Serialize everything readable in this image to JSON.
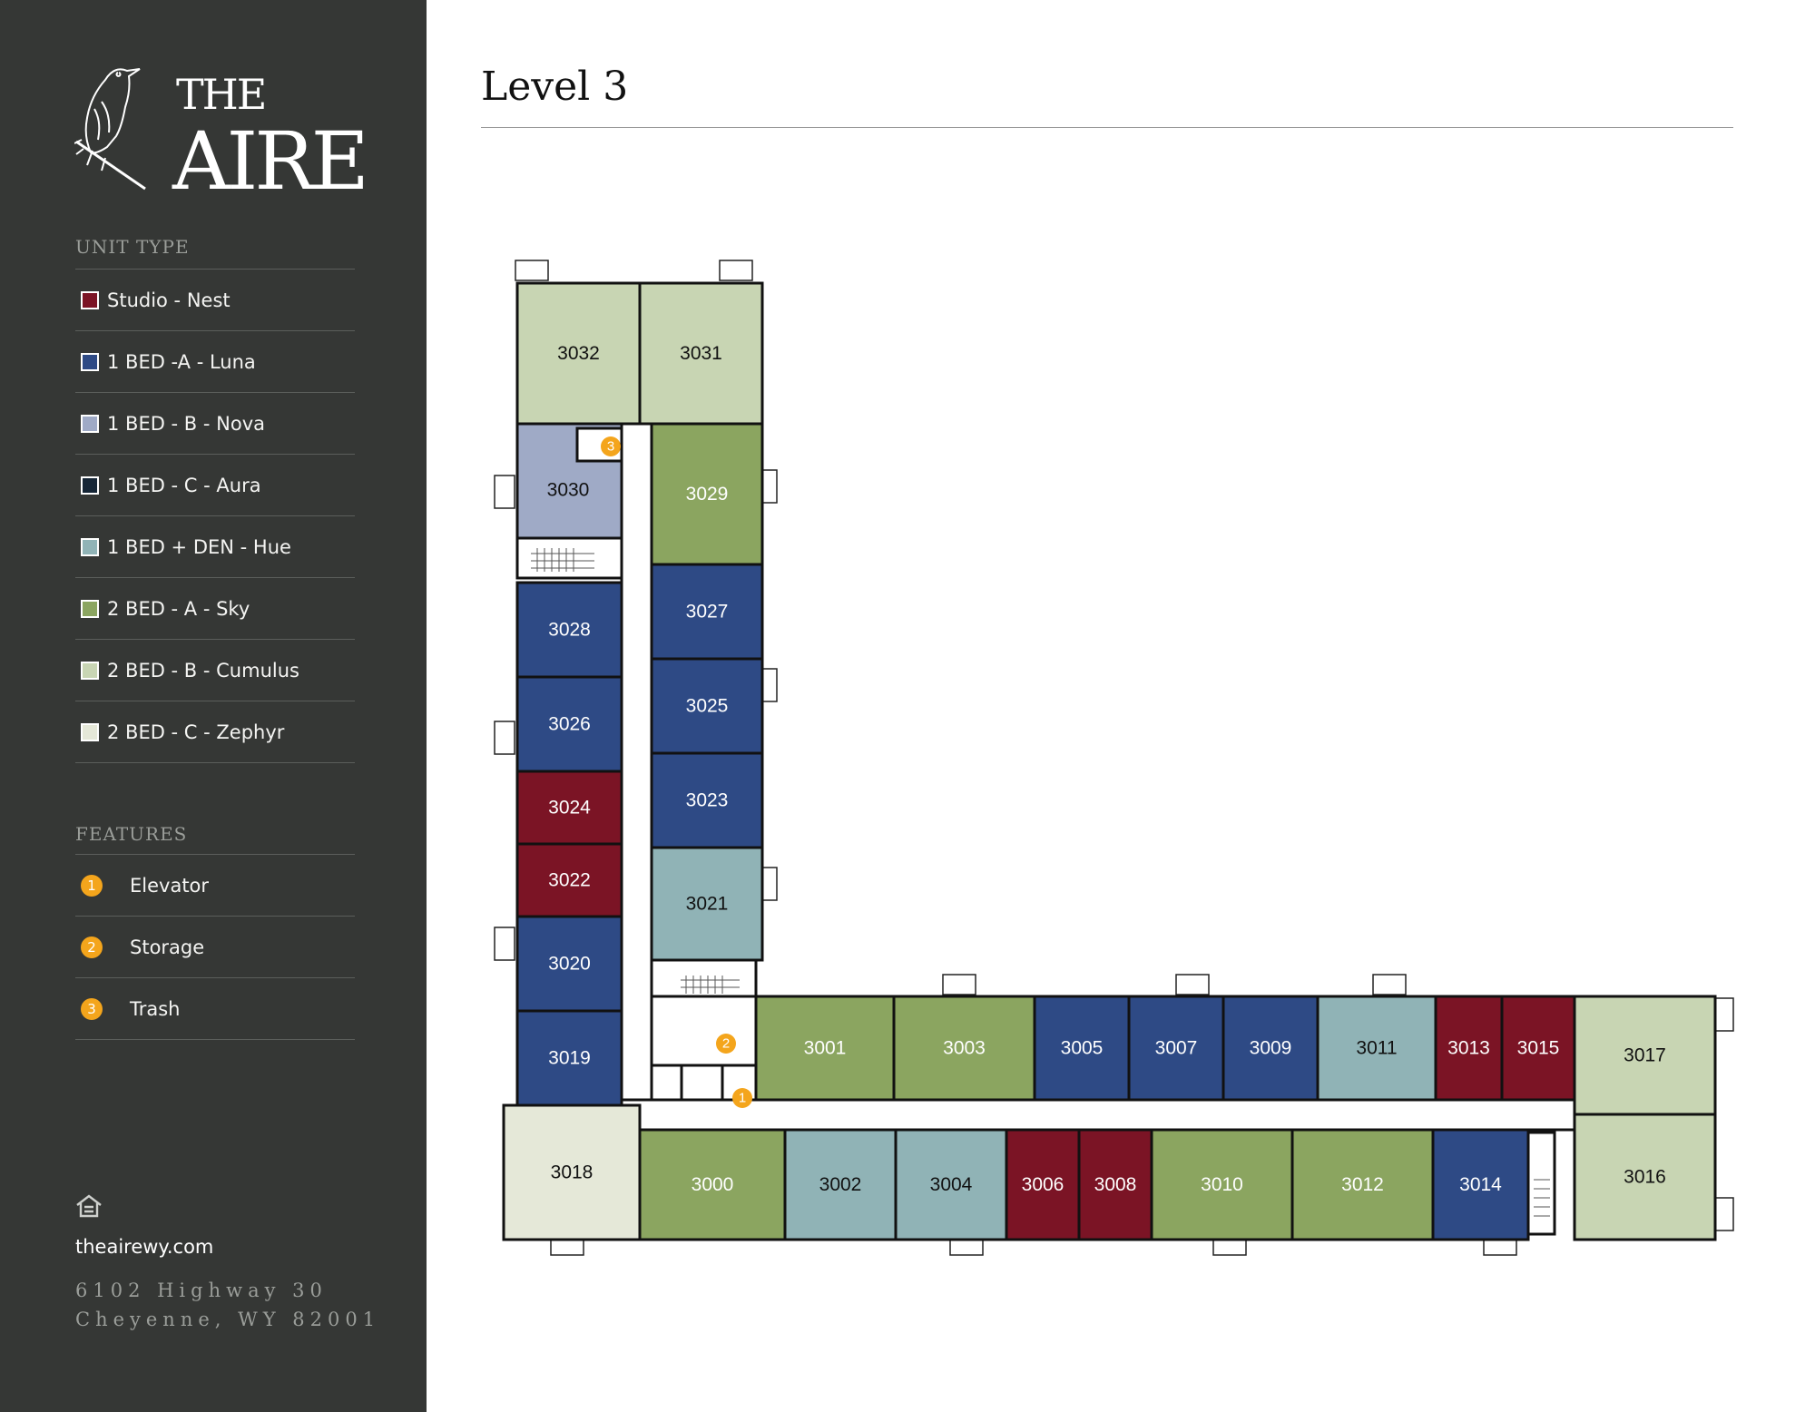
{
  "brand": {
    "line1": "THE",
    "line2": "AIRE"
  },
  "page_title": "Level 3",
  "legend": {
    "title": "UNIT TYPE",
    "items": [
      {
        "label": "Studio - Nest",
        "color": "#7b1425"
      },
      {
        "label": "1 BED -A - Luna",
        "color": "#2e4a85"
      },
      {
        "label": "1 BED - B - Nova",
        "color": "#9faac6"
      },
      {
        "label": "1 BED - C - Aura",
        "color": "#152535"
      },
      {
        "label": "1 BED + DEN - Hue",
        "color": "#90b3b6"
      },
      {
        "label": "2 BED - A - Sky",
        "color": "#8ba560"
      },
      {
        "label": "2 BED - B - Cumulus",
        "color": "#c8d5b3"
      },
      {
        "label": "2 BED - C - Zephyr",
        "color": "#e5e8d8"
      }
    ]
  },
  "features": {
    "title": "FEATURES",
    "items": [
      {
        "number": "1",
        "label": "Elevator"
      },
      {
        "number": "2",
        "label": "Storage"
      },
      {
        "number": "3",
        "label": "Trash"
      }
    ]
  },
  "footer": {
    "icon": "equal-housing-icon",
    "website": "theairewy.com",
    "address_line1": "6102 Highway 30",
    "address_line2": "Cheyenne, WY 82001"
  },
  "units": [
    {
      "id": "3032",
      "type": "2 BED - B - Cumulus"
    },
    {
      "id": "3031",
      "type": "2 BED - B - Cumulus"
    },
    {
      "id": "3030",
      "type": "1 BED - B - Nova"
    },
    {
      "id": "3029",
      "type": "2 BED - A - Sky"
    },
    {
      "id": "3028",
      "type": "1 BED -A - Luna"
    },
    {
      "id": "3027",
      "type": "1 BED -A - Luna"
    },
    {
      "id": "3026",
      "type": "1 BED -A - Luna"
    },
    {
      "id": "3025",
      "type": "1 BED -A - Luna"
    },
    {
      "id": "3024",
      "type": "Studio - Nest"
    },
    {
      "id": "3023",
      "type": "1 BED -A - Luna"
    },
    {
      "id": "3022",
      "type": "Studio - Nest"
    },
    {
      "id": "3021",
      "type": "1 BED + DEN - Hue"
    },
    {
      "id": "3020",
      "type": "1 BED -A - Luna"
    },
    {
      "id": "3019",
      "type": "1 BED -A - Luna"
    },
    {
      "id": "3001",
      "type": "2 BED - A - Sky"
    },
    {
      "id": "3003",
      "type": "2 BED - A - Sky"
    },
    {
      "id": "3005",
      "type": "1 BED -A - Luna"
    },
    {
      "id": "3007",
      "type": "1 BED -A - Luna"
    },
    {
      "id": "3009",
      "type": "1 BED -A - Luna"
    },
    {
      "id": "3011",
      "type": "1 BED + DEN - Hue"
    },
    {
      "id": "3013",
      "type": "Studio - Nest"
    },
    {
      "id": "3015",
      "type": "Studio - Nest"
    },
    {
      "id": "3017",
      "type": "2 BED - B - Cumulus"
    },
    {
      "id": "3018",
      "type": "2 BED - C - Zephyr"
    },
    {
      "id": "3000",
      "type": "2 BED - A - Sky"
    },
    {
      "id": "3002",
      "type": "1 BED + DEN - Hue"
    },
    {
      "id": "3004",
      "type": "1 BED + DEN - Hue"
    },
    {
      "id": "3006",
      "type": "Studio - Nest"
    },
    {
      "id": "3008",
      "type": "Studio - Nest"
    },
    {
      "id": "3010",
      "type": "2 BED - A - Sky"
    },
    {
      "id": "3012",
      "type": "2 BED - A - Sky"
    },
    {
      "id": "3014",
      "type": "1 BED -A - Luna"
    },
    {
      "id": "3016",
      "type": "2 BED - B - Cumulus"
    }
  ],
  "feature_markers": [
    {
      "number": "3",
      "feature": "Trash"
    },
    {
      "number": "2",
      "feature": "Storage"
    },
    {
      "number": "1",
      "feature": "Elevator"
    }
  ]
}
